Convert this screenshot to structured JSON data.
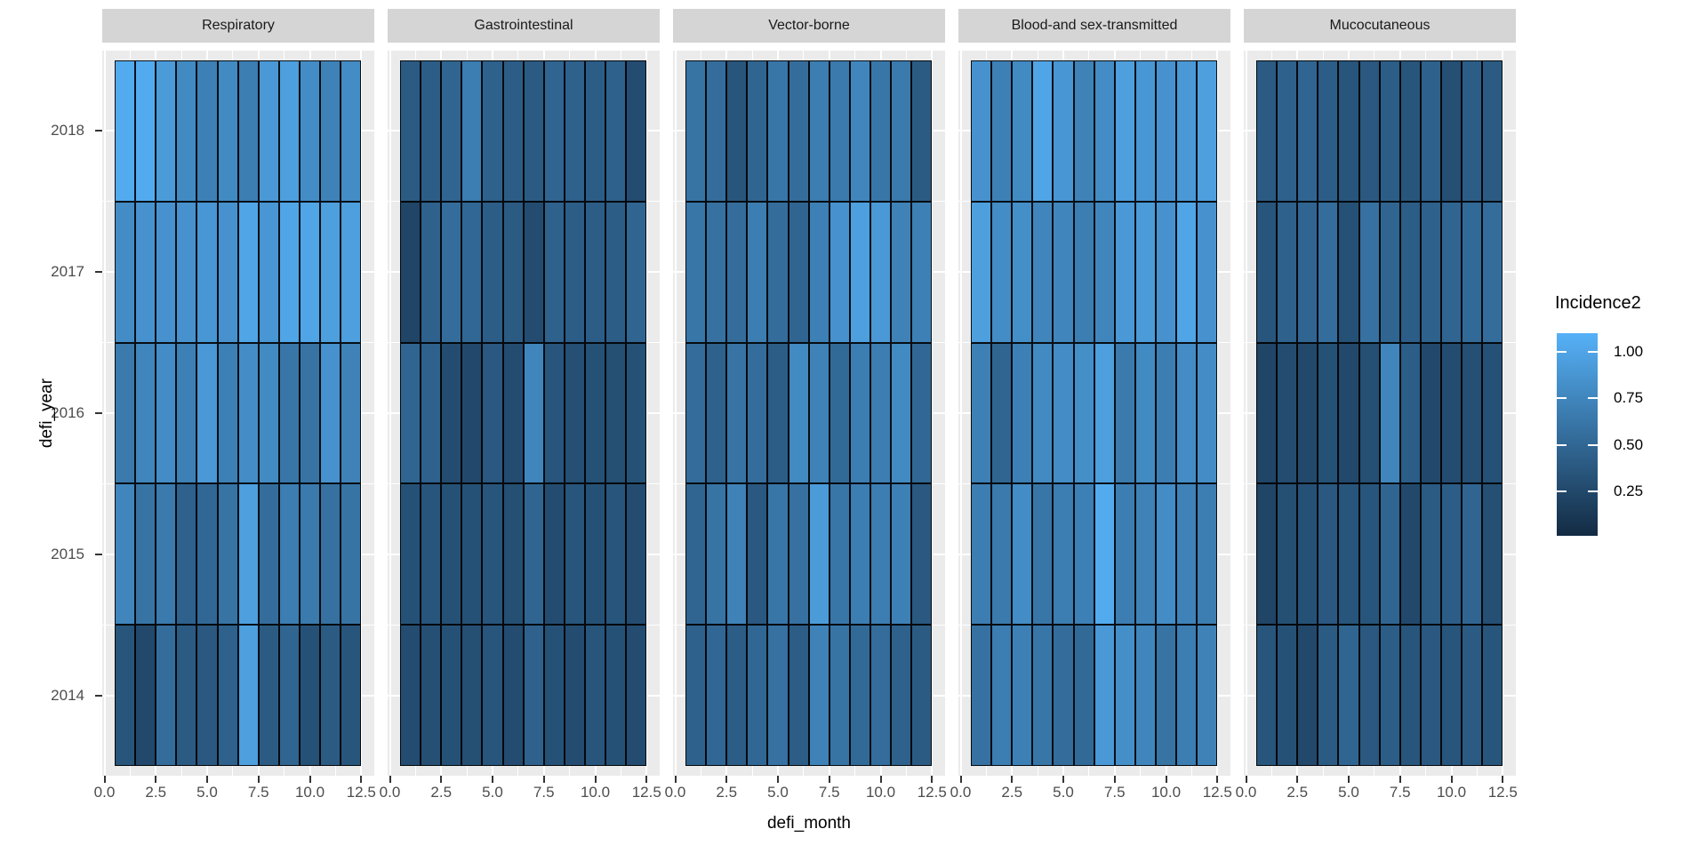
{
  "figure": {
    "background": "#FFFFFF"
  },
  "axes": {
    "x_title": "defi_month",
    "y_title": "defi_year",
    "x_tick_labels": [
      "0.0",
      "2.5",
      "5.0",
      "7.5",
      "10.0",
      "12.5"
    ],
    "x_tick_values": [
      0,
      2.5,
      5,
      7.5,
      10,
      12.5
    ],
    "y_tick_labels": [
      "2018",
      "2017",
      "2016",
      "2015",
      "2014"
    ]
  },
  "legend": {
    "title": "Incidence2",
    "tick_labels": [
      "1.00",
      "0.75",
      "0.50",
      "0.25"
    ],
    "tick_values": [
      1.0,
      0.75,
      0.5,
      0.25
    ],
    "domain": [
      0.01,
      1.1
    ],
    "gradient_low": "#132B43",
    "gradient_high": "#56B1F7"
  },
  "style": {
    "strip_bg": "#D5D5D5",
    "panel_bg": "#EBEBEB",
    "grid_color": "#FFFFFF",
    "tile_border": "#000000",
    "tick_color": "#333333",
    "tick_label_color": "#4D4D4D"
  },
  "chart_data": {
    "type": "heatmap",
    "x_field": "defi_month",
    "y_field": "defi_year",
    "value_field": "Incidence2",
    "months": [
      1,
      2,
      3,
      4,
      5,
      6,
      7,
      8,
      9,
      10,
      11,
      12
    ],
    "years": [
      2018,
      2017,
      2016,
      2015,
      2014
    ],
    "x_range_data": [
      0.5,
      12.5
    ],
    "facets": [
      {
        "label": "Respiratory",
        "series": [
          {
            "year": 2018,
            "values": [
              1.05,
              1.05,
              0.92,
              0.78,
              0.7,
              0.78,
              0.68,
              0.9,
              0.95,
              0.8,
              0.72,
              0.8
            ]
          },
          {
            "year": 2017,
            "values": [
              0.8,
              0.85,
              0.85,
              0.85,
              0.88,
              0.85,
              1.0,
              0.88,
              1.0,
              1.0,
              0.95,
              0.95
            ]
          },
          {
            "year": 2016,
            "values": [
              0.65,
              0.75,
              0.8,
              0.7,
              0.9,
              0.7,
              0.8,
              0.78,
              0.62,
              0.6,
              0.85,
              0.72
            ]
          },
          {
            "year": 2015,
            "values": [
              0.75,
              0.6,
              0.65,
              0.45,
              0.5,
              0.6,
              0.95,
              0.55,
              0.68,
              0.65,
              0.58,
              0.6
            ]
          },
          {
            "year": 2014,
            "values": [
              0.35,
              0.25,
              0.55,
              0.4,
              0.38,
              0.45,
              0.95,
              0.4,
              0.48,
              0.32,
              0.4,
              0.35
            ]
          }
        ]
      },
      {
        "label": "Gastrointestinal",
        "series": [
          {
            "year": 2018,
            "values": [
              0.4,
              0.42,
              0.48,
              0.68,
              0.45,
              0.42,
              0.4,
              0.48,
              0.45,
              0.42,
              0.45,
              0.28
            ]
          },
          {
            "year": 2017,
            "values": [
              0.22,
              0.45,
              0.55,
              0.5,
              0.42,
              0.4,
              0.28,
              0.45,
              0.42,
              0.42,
              0.42,
              0.48
            ]
          },
          {
            "year": 2016,
            "values": [
              0.48,
              0.45,
              0.28,
              0.25,
              0.38,
              0.28,
              0.75,
              0.35,
              0.3,
              0.32,
              0.3,
              0.32
            ]
          },
          {
            "year": 2015,
            "values": [
              0.32,
              0.35,
              0.32,
              0.32,
              0.35,
              0.3,
              0.48,
              0.28,
              0.35,
              0.32,
              0.35,
              0.28
            ]
          },
          {
            "year": 2014,
            "values": [
              0.28,
              0.3,
              0.32,
              0.3,
              0.35,
              0.28,
              0.45,
              0.32,
              0.28,
              0.35,
              0.32,
              0.28
            ]
          }
        ]
      },
      {
        "label": "Vector-borne",
        "series": [
          {
            "year": 2018,
            "values": [
              0.6,
              0.55,
              0.35,
              0.48,
              0.62,
              0.55,
              0.68,
              0.65,
              0.75,
              0.62,
              0.65,
              0.4
            ]
          },
          {
            "year": 2017,
            "values": [
              0.62,
              0.58,
              0.55,
              0.68,
              0.55,
              0.48,
              0.7,
              0.85,
              0.95,
              0.9,
              0.72,
              0.7
            ]
          },
          {
            "year": 2016,
            "values": [
              0.55,
              0.45,
              0.6,
              0.55,
              0.42,
              0.78,
              0.72,
              0.52,
              0.68,
              0.68,
              0.78,
              0.5
            ]
          },
          {
            "year": 2015,
            "values": [
              0.48,
              0.6,
              0.72,
              0.38,
              0.62,
              0.58,
              0.92,
              0.62,
              0.68,
              0.68,
              0.7,
              0.38
            ]
          },
          {
            "year": 2014,
            "values": [
              0.45,
              0.5,
              0.42,
              0.5,
              0.58,
              0.42,
              0.72,
              0.6,
              0.52,
              0.55,
              0.45,
              0.4
            ]
          }
        ]
      },
      {
        "label": "Blood-and sex-transmitted",
        "series": [
          {
            "year": 2018,
            "values": [
              0.85,
              0.7,
              0.78,
              1.0,
              0.88,
              0.72,
              0.8,
              0.95,
              0.88,
              0.85,
              0.9,
              0.95
            ]
          },
          {
            "year": 2017,
            "values": [
              0.95,
              0.8,
              0.82,
              0.75,
              0.75,
              0.68,
              0.75,
              0.9,
              0.92,
              0.85,
              1.0,
              0.85
            ]
          },
          {
            "year": 2016,
            "values": [
              0.7,
              0.48,
              0.7,
              0.78,
              0.8,
              0.82,
              0.95,
              0.65,
              0.78,
              0.68,
              0.8,
              0.8
            ]
          },
          {
            "year": 2015,
            "values": [
              0.68,
              0.65,
              0.8,
              0.62,
              0.68,
              0.7,
              1.05,
              0.68,
              0.72,
              0.8,
              0.72,
              0.68
            ]
          },
          {
            "year": 2014,
            "values": [
              0.58,
              0.68,
              0.7,
              0.62,
              0.55,
              0.52,
              0.9,
              0.82,
              0.75,
              0.6,
              0.68,
              0.72
            ]
          }
        ]
      },
      {
        "label": "Mucocutaneous",
        "series": [
          {
            "year": 2018,
            "values": [
              0.4,
              0.45,
              0.48,
              0.42,
              0.35,
              0.38,
              0.42,
              0.35,
              0.45,
              0.3,
              0.42,
              0.4
            ]
          },
          {
            "year": 2017,
            "values": [
              0.35,
              0.45,
              0.48,
              0.55,
              0.32,
              0.58,
              0.48,
              0.42,
              0.45,
              0.48,
              0.52,
              0.55
            ]
          },
          {
            "year": 2016,
            "values": [
              0.22,
              0.28,
              0.25,
              0.32,
              0.25,
              0.3,
              0.75,
              0.42,
              0.25,
              0.28,
              0.3,
              0.32
            ]
          },
          {
            "year": 2015,
            "values": [
              0.22,
              0.3,
              0.32,
              0.38,
              0.35,
              0.35,
              0.48,
              0.25,
              0.4,
              0.42,
              0.48,
              0.3
            ]
          },
          {
            "year": 2014,
            "values": [
              0.35,
              0.32,
              0.25,
              0.4,
              0.48,
              0.38,
              0.42,
              0.35,
              0.38,
              0.35,
              0.4,
              0.35
            ]
          }
        ]
      }
    ]
  }
}
